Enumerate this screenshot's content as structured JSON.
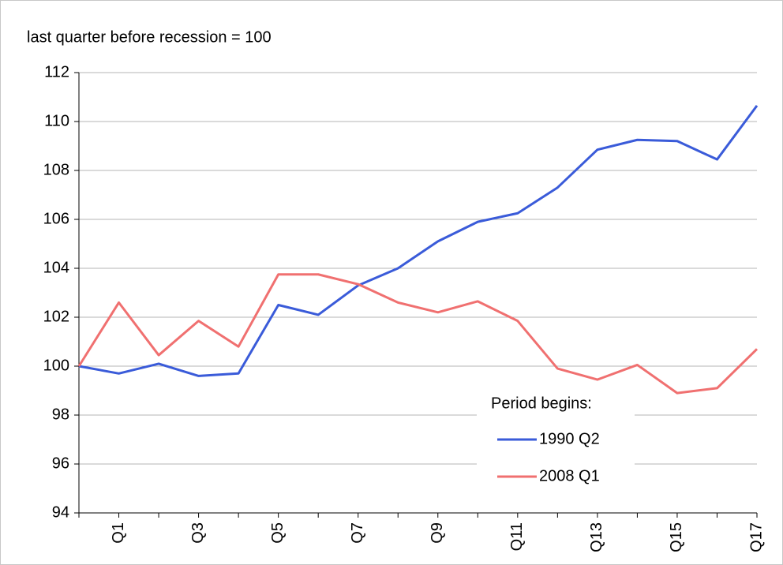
{
  "chart_data": {
    "type": "line",
    "title": "last quarter before recession = 100",
    "categories": [
      null,
      "Q1",
      null,
      "Q3",
      null,
      "Q5",
      null,
      "Q7",
      null,
      "Q9",
      null,
      "Q11",
      null,
      "Q13",
      null,
      "Q15",
      null,
      "Q17"
    ],
    "series": [
      {
        "name": "1990 Q2",
        "color": "#3a5bd9",
        "values": [
          100,
          99.7,
          100.1,
          99.6,
          99.7,
          102.5,
          102.1,
          103.3,
          104.0,
          105.1,
          105.9,
          106.25,
          107.3,
          108.85,
          109.25,
          109.2,
          108.45,
          110.65
        ]
      },
      {
        "name": "2008 Q1",
        "color": "#f07070",
        "values": [
          100,
          102.6,
          100.45,
          101.85,
          100.8,
          103.75,
          103.75,
          103.35,
          102.6,
          102.2,
          102.65,
          101.85,
          99.9,
          99.45,
          100.05,
          98.9,
          99.1,
          100.7
        ]
      }
    ],
    "legend_title": "Period begins:",
    "ylim": [
      94,
      112
    ],
    "yticks": [
      94,
      96,
      98,
      100,
      102,
      104,
      106,
      108,
      110,
      112
    ],
    "grid": true
  }
}
